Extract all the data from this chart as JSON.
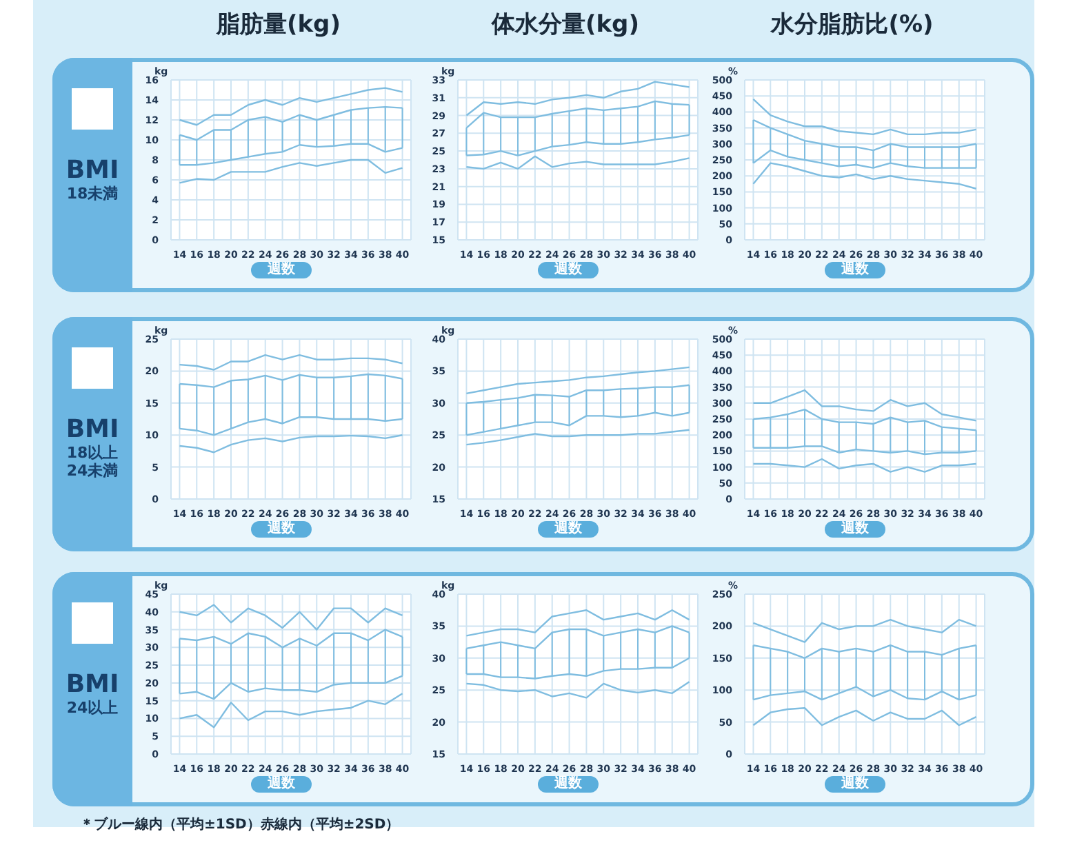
{
  "chart_data": [
    {
      "type": "line",
      "title": "脂肪量(kg)",
      "annotations": [
        "BMI",
        "18未満"
      ],
      "xlabel": "週数",
      "ylabel": "kg",
      "x": [
        14,
        16,
        18,
        20,
        22,
        24,
        26,
        28,
        30,
        32,
        34,
        36,
        38,
        40
      ],
      "xlim": [
        13,
        41
      ],
      "xticks": [
        14,
        16,
        18,
        20,
        22,
        24,
        26,
        28,
        30,
        32,
        34,
        36,
        38,
        40
      ],
      "ylim": [
        0,
        16
      ],
      "yticks": [
        0,
        2,
        4,
        6,
        8,
        10,
        12,
        14,
        16
      ],
      "grid": true,
      "series": [
        {
          "color": "#7fbde0",
          "values": [
            12,
            11.5,
            12.5,
            12.5,
            13.5,
            14,
            13.5,
            14.2,
            13.8,
            14.2,
            14.6,
            15,
            15.2,
            14.8
          ]
        },
        {
          "color": "#7fbde0",
          "values": [
            10.5,
            10,
            11,
            11,
            12,
            12.3,
            11.8,
            12.5,
            12,
            12.5,
            13,
            13.2,
            13.3,
            13.2
          ],
          "errors": [
            [
              7.5,
              10.5
            ],
            [
              7.5,
              10
            ],
            [
              7.7,
              11
            ],
            [
              8,
              11
            ],
            [
              8.3,
              12
            ],
            [
              8.6,
              12.3
            ],
            [
              8.8,
              11.8
            ],
            [
              9.5,
              12.5
            ],
            [
              9.3,
              12
            ],
            [
              9.4,
              12.5
            ],
            [
              9.6,
              13
            ],
            [
              9.6,
              13.2
            ],
            [
              8.8,
              13.3
            ],
            [
              9.2,
              13.2
            ]
          ]
        },
        {
          "color": "#7fbde0",
          "values": [
            7.5,
            7.5,
            7.7,
            8,
            8.3,
            8.6,
            8.8,
            9.5,
            9.3,
            9.4,
            9.6,
            9.6,
            8.8,
            9.2
          ]
        },
        {
          "color": "#7fbde0",
          "values": [
            5.7,
            6.1,
            6,
            6.8,
            6.8,
            6.8,
            7.3,
            7.7,
            7.4,
            7.7,
            8,
            8,
            6.7,
            7.2
          ]
        }
      ]
    },
    {
      "type": "line",
      "title": "体水分量(kg)",
      "xlabel": "週数",
      "ylabel": "kg",
      "x": [
        14,
        16,
        18,
        20,
        22,
        24,
        26,
        28,
        30,
        32,
        34,
        36,
        38,
        40
      ],
      "xlim": [
        13,
        41
      ],
      "xticks": [
        14,
        16,
        18,
        20,
        22,
        24,
        26,
        28,
        30,
        32,
        34,
        36,
        38,
        40
      ],
      "ylim": [
        15,
        33
      ],
      "yticks": [
        15,
        17,
        19,
        21,
        23,
        25,
        27,
        29,
        31,
        33
      ],
      "grid": true,
      "series": [
        {
          "color": "#7fbde0",
          "values": [
            29,
            30.5,
            30.3,
            30.5,
            30.3,
            30.8,
            31,
            31.3,
            31,
            31.7,
            32,
            32.8,
            32.5,
            32.2
          ]
        },
        {
          "color": "#7fbde0",
          "values": [
            27.6,
            29.3,
            28.8,
            28.8,
            28.8,
            29.2,
            29.5,
            29.8,
            29.6,
            29.8,
            30,
            30.6,
            30.3,
            30.2
          ],
          "errors": [
            [
              24.5,
              27.6
            ],
            [
              24.6,
              29.3
            ],
            [
              25,
              28.8
            ],
            [
              24.5,
              28.8
            ],
            [
              25,
              28.8
            ],
            [
              25.5,
              29.2
            ],
            [
              25.7,
              29.5
            ],
            [
              26,
              29.8
            ],
            [
              25.8,
              29.6
            ],
            [
              25.8,
              29.8
            ],
            [
              26,
              30
            ],
            [
              26.3,
              30.6
            ],
            [
              26.5,
              30.3
            ],
            [
              26.8,
              30.2
            ]
          ]
        },
        {
          "color": "#7fbde0",
          "values": [
            24.5,
            24.6,
            25,
            24.5,
            25,
            25.5,
            25.7,
            26,
            25.8,
            25.8,
            26,
            26.3,
            26.5,
            26.8
          ]
        },
        {
          "color": "#7fbde0",
          "values": [
            23.2,
            23,
            23.7,
            23,
            24.4,
            23.2,
            23.6,
            23.8,
            23.5,
            23.5,
            23.5,
            23.5,
            23.8,
            24.2
          ]
        }
      ]
    },
    {
      "type": "line",
      "title": "水分脂肪比(%)",
      "xlabel": "週数",
      "ylabel": "%",
      "x": [
        14,
        16,
        18,
        20,
        22,
        24,
        26,
        28,
        30,
        32,
        34,
        36,
        38,
        40
      ],
      "xlim": [
        13,
        41
      ],
      "xticks": [
        14,
        16,
        18,
        20,
        22,
        24,
        26,
        28,
        30,
        32,
        34,
        36,
        38,
        40
      ],
      "ylim": [
        0,
        500
      ],
      "yticks": [
        0,
        50,
        100,
        150,
        200,
        250,
        300,
        350,
        400,
        450,
        500
      ],
      "grid": true,
      "series": [
        {
          "color": "#7fbde0",
          "values": [
            440,
            390,
            370,
            355,
            355,
            340,
            335,
            330,
            345,
            330,
            330,
            335,
            335,
            345
          ]
        },
        {
          "color": "#7fbde0",
          "values": [
            375,
            350,
            330,
            310,
            300,
            290,
            290,
            280,
            300,
            290,
            290,
            290,
            290,
            300
          ],
          "errors": [
            [
              240,
              375
            ],
            [
              280,
              350
            ],
            [
              260,
              330
            ],
            [
              250,
              310
            ],
            [
              240,
              300
            ],
            [
              230,
              290
            ],
            [
              235,
              290
            ],
            [
              225,
              280
            ],
            [
              240,
              300
            ],
            [
              230,
              290
            ],
            [
              225,
              290
            ],
            [
              225,
              290
            ],
            [
              225,
              290
            ],
            [
              225,
              300
            ]
          ]
        },
        {
          "color": "#7fbde0",
          "values": [
            240,
            280,
            260,
            250,
            240,
            230,
            235,
            225,
            240,
            230,
            225,
            225,
            225,
            225
          ]
        },
        {
          "color": "#7fbde0",
          "values": [
            175,
            240,
            230,
            215,
            200,
            195,
            205,
            190,
            200,
            190,
            185,
            180,
            175,
            160
          ]
        }
      ]
    },
    {
      "type": "line",
      "annotations": [
        "BMI",
        "18以上",
        "24未満"
      ],
      "xlabel": "週数",
      "ylabel": "kg",
      "x": [
        14,
        16,
        18,
        20,
        22,
        24,
        26,
        28,
        30,
        32,
        34,
        36,
        38,
        40
      ],
      "xlim": [
        13,
        41
      ],
      "xticks": [
        14,
        16,
        18,
        20,
        22,
        24,
        26,
        28,
        30,
        32,
        34,
        36,
        38,
        40
      ],
      "ylim": [
        0,
        25
      ],
      "yticks": [
        0,
        5,
        10,
        15,
        20,
        25
      ],
      "grid": true,
      "series": [
        {
          "color": "#7fbde0",
          "values": [
            21,
            20.8,
            20.2,
            21.5,
            21.5,
            22.5,
            21.8,
            22.5,
            21.8,
            21.8,
            22,
            22,
            21.8,
            21.2
          ]
        },
        {
          "color": "#7fbde0",
          "values": [
            18,
            17.8,
            17.5,
            18.5,
            18.7,
            19.3,
            18.6,
            19.4,
            19,
            19,
            19.2,
            19.5,
            19.3,
            18.8
          ],
          "errors": [
            [
              11,
              18
            ],
            [
              10.7,
              17.8
            ],
            [
              10,
              17.5
            ],
            [
              11,
              18.5
            ],
            [
              12,
              18.7
            ],
            [
              12.5,
              19.3
            ],
            [
              11.8,
              18.6
            ],
            [
              12.8,
              19.4
            ],
            [
              12.8,
              19
            ],
            [
              12.5,
              19
            ],
            [
              12.5,
              19.2
            ],
            [
              12.5,
              19.5
            ],
            [
              12.2,
              19.3
            ],
            [
              12.5,
              18.8
            ]
          ]
        },
        {
          "color": "#7fbde0",
          "values": [
            11,
            10.7,
            10,
            11,
            12,
            12.5,
            11.8,
            12.8,
            12.8,
            12.5,
            12.5,
            12.5,
            12.2,
            12.5
          ]
        },
        {
          "color": "#7fbde0",
          "values": [
            8.3,
            8,
            7.3,
            8.5,
            9.2,
            9.5,
            9,
            9.6,
            9.8,
            9.8,
            9.9,
            9.8,
            9.5,
            10
          ]
        }
      ]
    },
    {
      "type": "line",
      "xlabel": "週数",
      "ylabel": "kg",
      "x": [
        14,
        16,
        18,
        20,
        22,
        24,
        26,
        28,
        30,
        32,
        34,
        36,
        38,
        40
      ],
      "xlim": [
        13,
        41
      ],
      "xticks": [
        14,
        16,
        18,
        20,
        22,
        24,
        26,
        28,
        30,
        32,
        34,
        36,
        38,
        40
      ],
      "ylim": [
        15,
        40
      ],
      "yticks": [
        15,
        20,
        25,
        30,
        35,
        40
      ],
      "grid": true,
      "series": [
        {
          "color": "#7fbde0",
          "values": [
            31.5,
            32,
            32.5,
            33,
            33.2,
            33.4,
            33.6,
            34,
            34.2,
            34.5,
            34.8,
            35,
            35.3,
            35.6
          ]
        },
        {
          "color": "#7fbde0",
          "values": [
            30,
            30.2,
            30.5,
            30.8,
            31.3,
            31.2,
            31,
            32,
            32,
            32.2,
            32.3,
            32.5,
            32.5,
            32.8
          ],
          "errors": [
            [
              25,
              30
            ],
            [
              25.5,
              30.2
            ],
            [
              26,
              30.5
            ],
            [
              26.5,
              30.8
            ],
            [
              27,
              31.3
            ],
            [
              27,
              31.2
            ],
            [
              26.5,
              31
            ],
            [
              28,
              32
            ],
            [
              28,
              32
            ],
            [
              27.8,
              32.2
            ],
            [
              28,
              32.3
            ],
            [
              28.5,
              32.5
            ],
            [
              28,
              32.5
            ],
            [
              28.5,
              32.8
            ]
          ]
        },
        {
          "color": "#7fbde0",
          "values": [
            25,
            25.5,
            26,
            26.5,
            27,
            27,
            26.5,
            28,
            28,
            27.8,
            28,
            28.5,
            28,
            28.5
          ]
        },
        {
          "color": "#7fbde0",
          "values": [
            23.5,
            23.8,
            24.2,
            24.7,
            25.2,
            24.8,
            24.8,
            25,
            25,
            25,
            25.2,
            25.2,
            25.5,
            25.8
          ]
        }
      ]
    },
    {
      "type": "line",
      "xlabel": "週数",
      "ylabel": "%",
      "x": [
        14,
        16,
        18,
        20,
        22,
        24,
        26,
        28,
        30,
        32,
        34,
        36,
        38,
        40
      ],
      "xlim": [
        13,
        41
      ],
      "xticks": [
        14,
        16,
        18,
        20,
        22,
        24,
        26,
        28,
        30,
        32,
        34,
        36,
        38,
        40
      ],
      "ylim": [
        0,
        500
      ],
      "yticks": [
        0,
        50,
        100,
        150,
        200,
        250,
        300,
        350,
        400,
        450,
        500
      ],
      "grid": true,
      "series": [
        {
          "color": "#7fbde0",
          "values": [
            300,
            300,
            320,
            340,
            290,
            290,
            280,
            275,
            310,
            290,
            300,
            265,
            255,
            245
          ]
        },
        {
          "color": "#7fbde0",
          "values": [
            250,
            255,
            265,
            280,
            250,
            240,
            240,
            235,
            255,
            240,
            245,
            225,
            220,
            215
          ],
          "errors": [
            [
              160,
              250
            ],
            [
              160,
              255
            ],
            [
              160,
              265
            ],
            [
              165,
              280
            ],
            [
              165,
              250
            ],
            [
              145,
              240
            ],
            [
              155,
              240
            ],
            [
              150,
              235
            ],
            [
              145,
              255
            ],
            [
              150,
              240
            ],
            [
              140,
              245
            ],
            [
              145,
              225
            ],
            [
              145,
              220
            ],
            [
              150,
              215
            ]
          ]
        },
        {
          "color": "#7fbde0",
          "values": [
            160,
            160,
            160,
            165,
            165,
            145,
            155,
            150,
            145,
            150,
            140,
            145,
            145,
            150
          ]
        },
        {
          "color": "#7fbde0",
          "values": [
            110,
            110,
            105,
            100,
            125,
            95,
            105,
            110,
            85,
            100,
            85,
            105,
            105,
            110
          ]
        }
      ]
    },
    {
      "type": "line",
      "annotations": [
        "BMI",
        "24以上"
      ],
      "xlabel": "週数",
      "ylabel": "kg",
      "x": [
        14,
        16,
        18,
        20,
        22,
        24,
        26,
        28,
        30,
        32,
        34,
        36,
        38,
        40
      ],
      "xlim": [
        13,
        41
      ],
      "xticks": [
        14,
        16,
        18,
        20,
        22,
        24,
        26,
        28,
        30,
        32,
        34,
        36,
        38,
        40
      ],
      "ylim": [
        0,
        45
      ],
      "yticks": [
        0,
        5,
        10,
        15,
        20,
        25,
        30,
        35,
        40,
        45
      ],
      "grid": true,
      "series": [
        {
          "color": "#7fbde0",
          "values": [
            40,
            39,
            42,
            37,
            41,
            39,
            35.5,
            40,
            35,
            41,
            41,
            37,
            41,
            39
          ]
        },
        {
          "color": "#7fbde0",
          "values": [
            32.5,
            32,
            33,
            31,
            34,
            33,
            30,
            32.5,
            30.5,
            34,
            34,
            32,
            35,
            33
          ],
          "errors": [
            [
              17,
              32.5
            ],
            [
              17.5,
              32
            ],
            [
              15.5,
              33
            ],
            [
              20,
              31
            ],
            [
              17.5,
              34
            ],
            [
              18.5,
              33
            ],
            [
              18,
              30
            ],
            [
              18,
              32.5
            ],
            [
              17.5,
              30.5
            ],
            [
              19.5,
              34
            ],
            [
              20,
              34
            ],
            [
              20,
              32
            ],
            [
              20,
              35
            ],
            [
              22,
              33
            ]
          ]
        },
        {
          "color": "#7fbde0",
          "values": [
            17,
            17.5,
            15.5,
            20,
            17.5,
            18.5,
            18,
            18,
            17.5,
            19.5,
            20,
            20,
            20,
            22
          ]
        },
        {
          "color": "#7fbde0",
          "values": [
            10,
            11,
            7.5,
            14.5,
            9.5,
            12,
            12,
            11,
            12,
            12.5,
            13,
            15,
            14,
            17
          ]
        }
      ]
    },
    {
      "type": "line",
      "xlabel": "週数",
      "ylabel": "kg",
      "x": [
        14,
        16,
        18,
        20,
        22,
        24,
        26,
        28,
        30,
        32,
        34,
        36,
        38,
        40
      ],
      "xlim": [
        13,
        41
      ],
      "xticks": [
        14,
        16,
        18,
        20,
        22,
        24,
        26,
        28,
        30,
        32,
        34,
        36,
        38,
        40
      ],
      "ylim": [
        15,
        40
      ],
      "yticks": [
        15,
        20,
        25,
        30,
        35,
        40
      ],
      "grid": true,
      "series": [
        {
          "color": "#7fbde0",
          "values": [
            33.5,
            34,
            34.5,
            34.5,
            34,
            36.5,
            37,
            37.5,
            36,
            36.5,
            37,
            36,
            37.5,
            36
          ]
        },
        {
          "color": "#7fbde0",
          "values": [
            31.5,
            32,
            32.5,
            32,
            31.5,
            34,
            34.5,
            34.5,
            33.5,
            34,
            34.5,
            34,
            35,
            34
          ],
          "errors": [
            [
              27.5,
              31.5
            ],
            [
              27.5,
              32
            ],
            [
              27,
              32.5
            ],
            [
              27,
              32
            ],
            [
              26.8,
              31.5
            ],
            [
              27.2,
              34
            ],
            [
              27.5,
              34.5
            ],
            [
              27.2,
              34.5
            ],
            [
              28,
              33.5
            ],
            [
              28.3,
              34
            ],
            [
              28.3,
              34.5
            ],
            [
              28.5,
              34
            ],
            [
              28.5,
              35
            ],
            [
              30,
              34
            ]
          ]
        },
        {
          "color": "#7fbde0",
          "values": [
            27.5,
            27.5,
            27,
            27,
            26.8,
            27.2,
            27.5,
            27.2,
            28,
            28.3,
            28.3,
            28.5,
            28.5,
            30
          ]
        },
        {
          "color": "#7fbde0",
          "values": [
            26,
            25.8,
            25,
            24.8,
            25,
            24,
            24.5,
            23.8,
            26,
            25,
            24.6,
            25,
            24.5,
            26.3
          ]
        }
      ]
    },
    {
      "type": "line",
      "annotations": [
        "＊ブルー線内（平均±1SD）赤線内（平均±2SD）"
      ],
      "xlabel": "週数",
      "ylabel": "%",
      "x": [
        14,
        16,
        18,
        20,
        22,
        24,
        26,
        28,
        30,
        32,
        34,
        36,
        38,
        40
      ],
      "xlim": [
        13,
        41
      ],
      "xticks": [
        14,
        16,
        18,
        20,
        22,
        24,
        26,
        28,
        30,
        32,
        34,
        36,
        38,
        40
      ],
      "ylim": [
        0,
        250
      ],
      "yticks": [
        0,
        50,
        100,
        150,
        200,
        250
      ],
      "grid": true,
      "series": [
        {
          "color": "#7fbde0",
          "values": [
            205,
            195,
            185,
            175,
            205,
            195,
            200,
            200,
            210,
            200,
            195,
            190,
            210,
            200
          ]
        },
        {
          "color": "#7fbde0",
          "values": [
            170,
            165,
            160,
            150,
            165,
            160,
            165,
            160,
            170,
            160,
            160,
            155,
            165,
            170
          ],
          "errors": [
            [
              85,
              170
            ],
            [
              92,
              165
            ],
            [
              95,
              160
            ],
            [
              98,
              150
            ],
            [
              85,
              165
            ],
            [
              95,
              160
            ],
            [
              105,
              165
            ],
            [
              90,
              160
            ],
            [
              100,
              170
            ],
            [
              87,
              160
            ],
            [
              85,
              160
            ],
            [
              98,
              155
            ],
            [
              85,
              165
            ],
            [
              92,
              170
            ]
          ]
        },
        {
          "color": "#7fbde0",
          "values": [
            85,
            92,
            95,
            98,
            85,
            95,
            105,
            90,
            100,
            87,
            85,
            98,
            85,
            92
          ]
        },
        {
          "color": "#7fbde0",
          "values": [
            45,
            65,
            70,
            72,
            45,
            58,
            68,
            52,
            65,
            55,
            55,
            68,
            45,
            58
          ]
        }
      ]
    }
  ]
}
